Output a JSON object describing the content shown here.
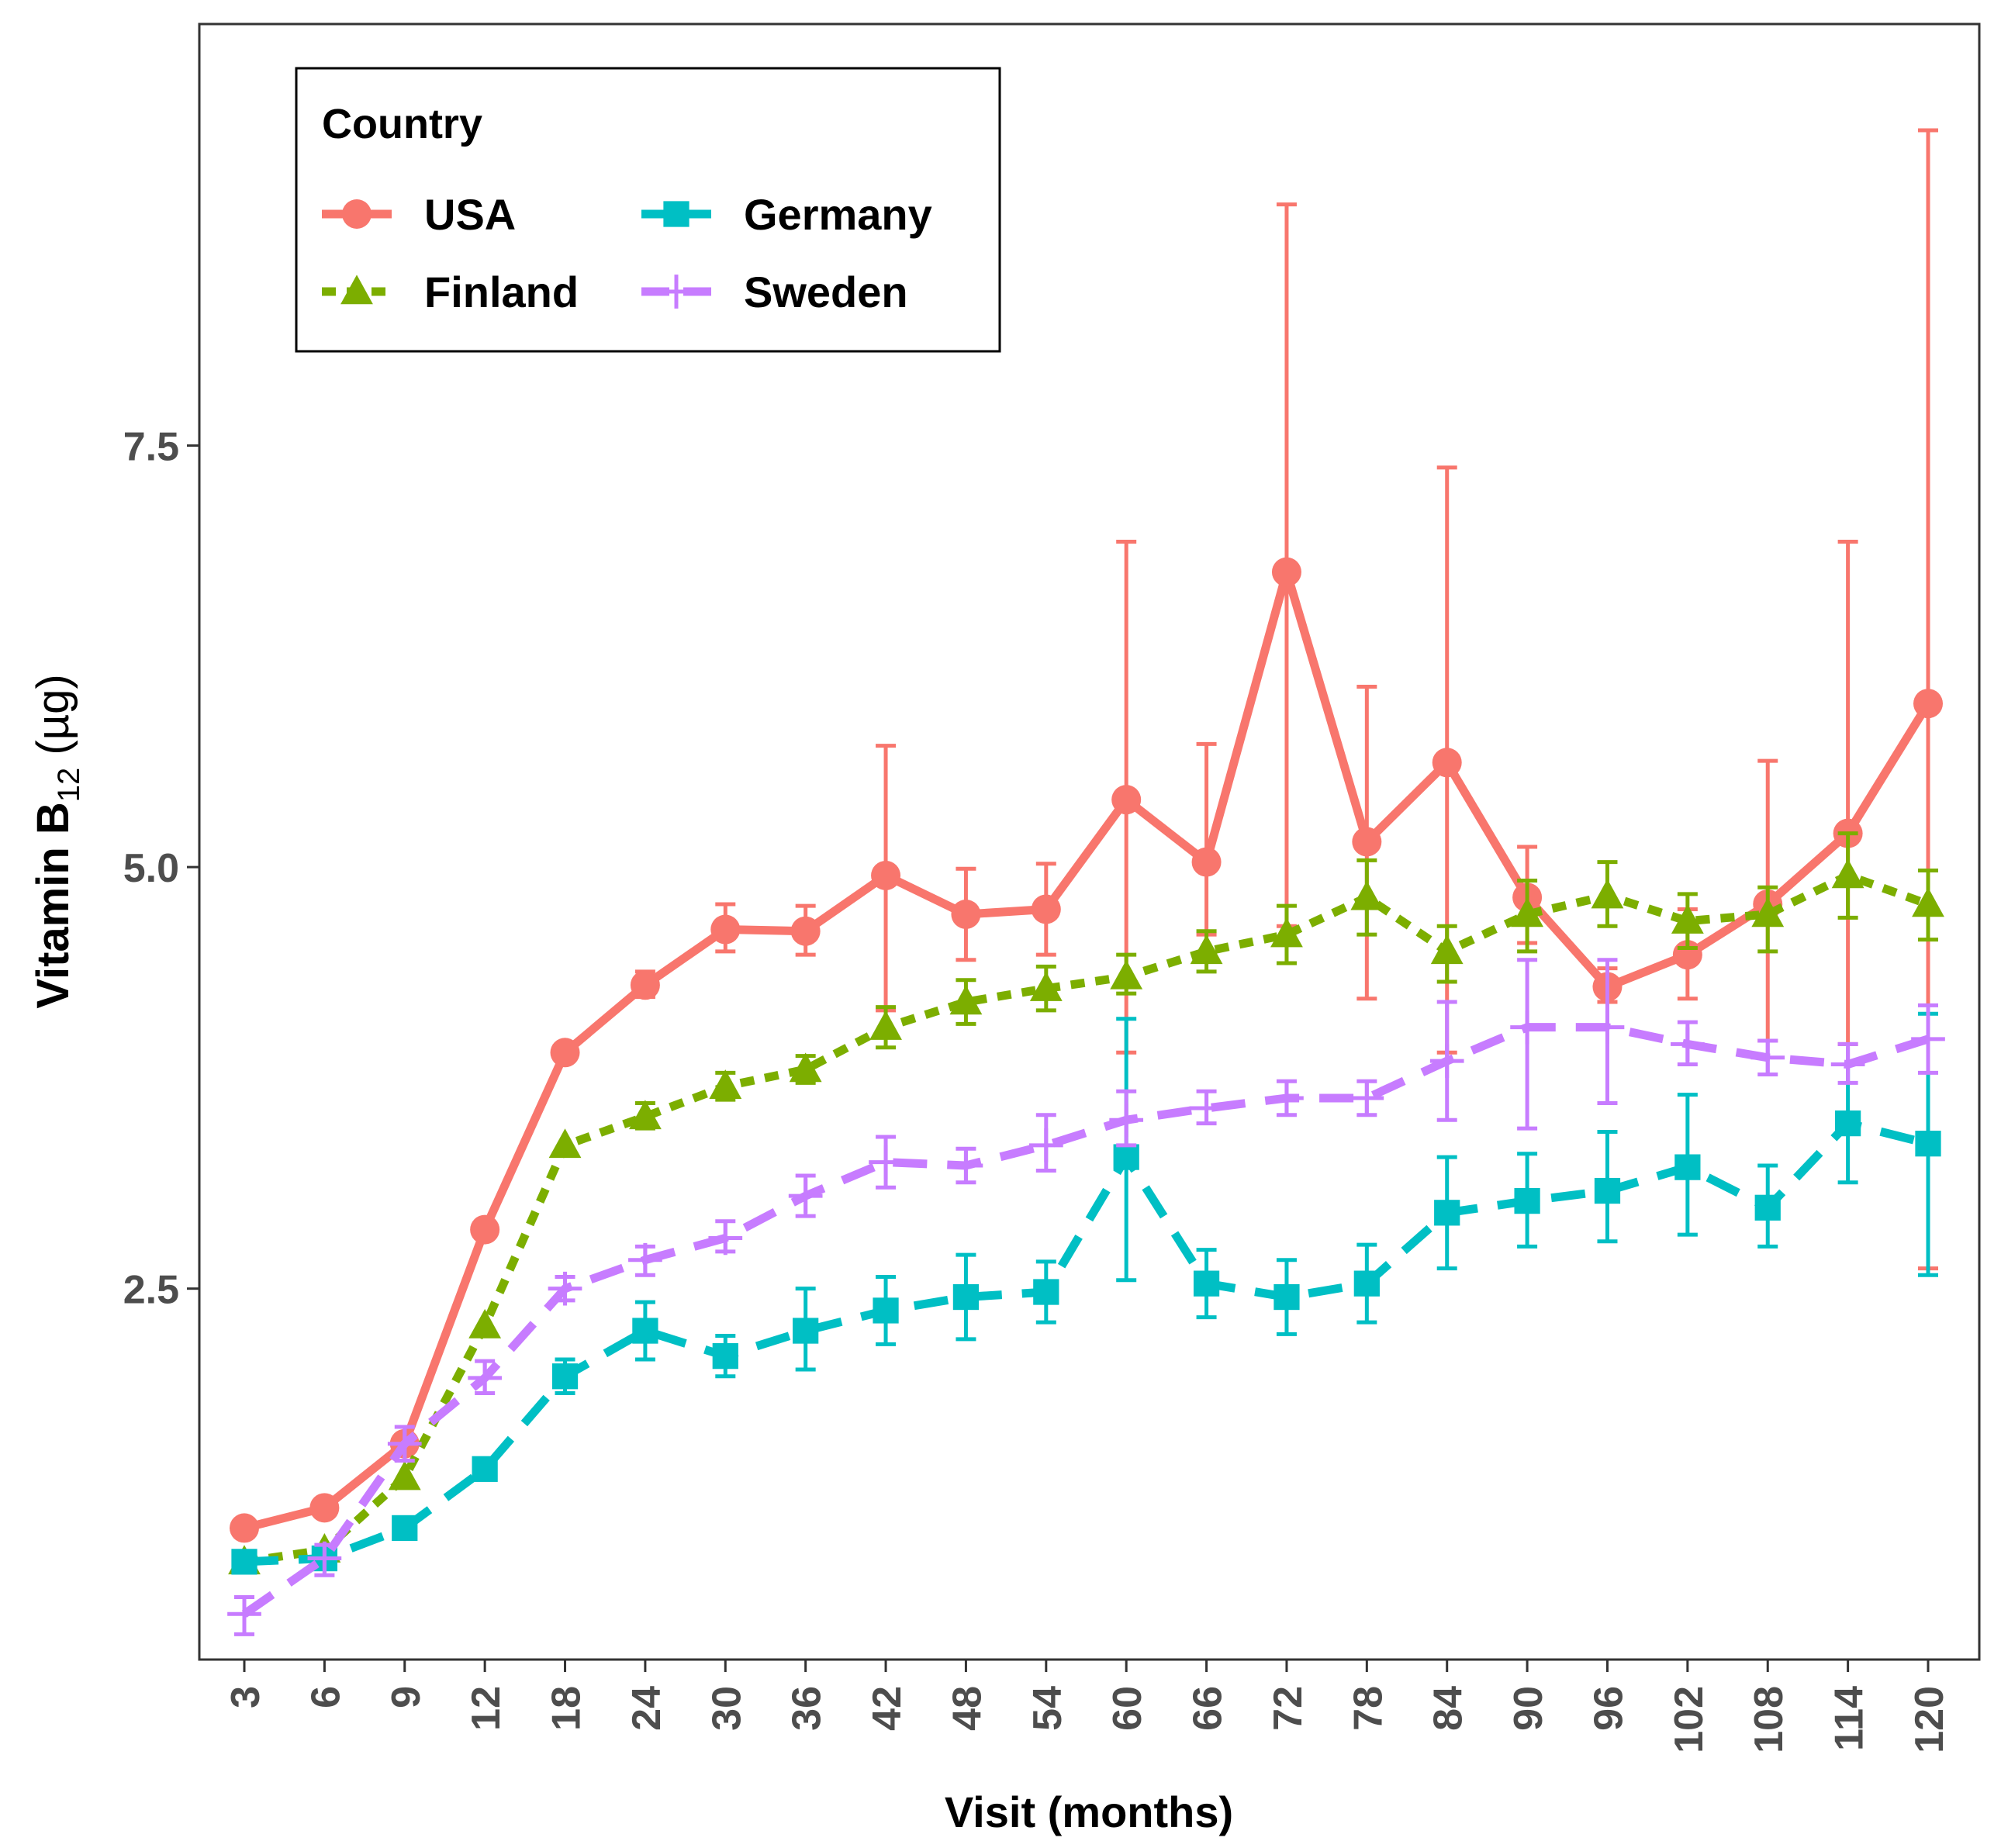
{
  "chart_data": {
    "type": "line",
    "title": "",
    "xlabel": "Visit (months)",
    "ylabel_main": "Vitamin B",
    "ylabel_sub": "12",
    "ylabel_unit": " (µg)",
    "ylim": [
      0.3,
      10.0
    ],
    "yticks": [
      2.5,
      5.0,
      7.5
    ],
    "ytick_labels": [
      "2.5",
      "5.0",
      "7.5"
    ],
    "categories": [
      "3",
      "6",
      "9",
      "12",
      "18",
      "24",
      "30",
      "36",
      "42",
      "48",
      "54",
      "60",
      "66",
      "72",
      "78",
      "84",
      "90",
      "96",
      "102",
      "108",
      "114",
      "120"
    ],
    "grid": false,
    "legend": {
      "title": "Country",
      "position": "top-left"
    },
    "series": [
      {
        "name": "USA",
        "color": "#F8766D",
        "dash": "solid",
        "marker": "circle",
        "values": [
          1.08,
          1.2,
          1.58,
          2.85,
          3.9,
          4.3,
          4.63,
          4.62,
          4.95,
          4.72,
          4.75,
          5.4,
          5.03,
          6.75,
          5.15,
          5.62,
          4.82,
          4.29,
          4.48,
          4.78,
          5.2,
          5.97
        ],
        "err_low": [
          1.08,
          1.2,
          1.58,
          2.85,
          3.9,
          4.23,
          4.5,
          4.48,
          4.15,
          4.45,
          4.48,
          3.9,
          4.6,
          4.65,
          4.22,
          3.9,
          4.55,
          4.2,
          4.22,
          3.97,
          3.95,
          2.62
        ],
        "err_high": [
          1.08,
          1.2,
          1.58,
          2.85,
          3.9,
          4.38,
          4.78,
          4.77,
          5.72,
          4.99,
          5.02,
          6.93,
          5.73,
          8.93,
          6.07,
          7.37,
          5.12,
          4.4,
          4.75,
          5.63,
          6.93,
          9.37
        ]
      },
      {
        "name": "Finland",
        "color": "#7CAE00",
        "dash": "dotted",
        "marker": "triangle",
        "values": [
          0.88,
          0.95,
          1.38,
          2.28,
          3.35,
          3.52,
          3.7,
          3.8,
          4.05,
          4.2,
          4.28,
          4.35,
          4.5,
          4.6,
          4.82,
          4.5,
          4.72,
          4.83,
          4.68,
          4.72,
          4.95,
          4.78
        ],
        "err_low": [
          0.88,
          0.95,
          1.38,
          2.28,
          3.35,
          3.45,
          3.62,
          3.72,
          3.93,
          4.07,
          4.15,
          4.25,
          4.38,
          4.43,
          4.6,
          4.32,
          4.5,
          4.65,
          4.52,
          4.5,
          4.7,
          4.57
        ],
        "err_high": [
          0.88,
          0.95,
          1.38,
          2.28,
          3.35,
          3.6,
          3.78,
          3.88,
          4.17,
          4.33,
          4.41,
          4.48,
          4.62,
          4.77,
          5.04,
          4.65,
          4.92,
          5.03,
          4.84,
          4.88,
          5.2,
          4.98
        ]
      },
      {
        "name": "Germany",
        "color": "#00BFC4",
        "dash": "dashed",
        "marker": "square",
        "values": [
          0.88,
          0.9,
          1.08,
          1.43,
          1.98,
          2.25,
          2.1,
          2.25,
          2.37,
          2.45,
          2.48,
          3.28,
          2.53,
          2.45,
          2.53,
          2.95,
          3.02,
          3.08,
          3.22,
          2.98,
          3.48,
          3.36
        ],
        "err_low": [
          0.88,
          0.9,
          1.08,
          1.43,
          1.88,
          2.08,
          1.98,
          2.02,
          2.17,
          2.2,
          2.3,
          2.55,
          2.33,
          2.23,
          2.3,
          2.62,
          2.75,
          2.78,
          2.82,
          2.75,
          3.13,
          2.58
        ],
        "err_high": [
          0.88,
          0.9,
          1.08,
          1.43,
          2.08,
          2.42,
          2.22,
          2.5,
          2.57,
          2.7,
          2.66,
          4.1,
          2.73,
          2.67,
          2.76,
          3.28,
          3.3,
          3.43,
          3.65,
          3.23,
          3.83,
          4.13
        ]
      },
      {
        "name": "Sweden",
        "color": "#C77CFF",
        "dash": "dashed",
        "marker": "plus",
        "values": [
          0.57,
          0.9,
          1.58,
          1.97,
          2.5,
          2.67,
          2.8,
          3.05,
          3.25,
          3.23,
          3.35,
          3.5,
          3.57,
          3.63,
          3.63,
          3.85,
          4.05,
          4.05,
          3.95,
          3.87,
          3.83,
          3.98
        ],
        "err_low": [
          0.45,
          0.8,
          1.48,
          1.88,
          2.43,
          2.58,
          2.72,
          2.93,
          3.1,
          3.13,
          3.2,
          3.35,
          3.48,
          3.53,
          3.53,
          3.5,
          3.45,
          3.6,
          3.83,
          3.77,
          3.72,
          3.78
        ],
        "err_high": [
          0.67,
          0.98,
          1.68,
          2.07,
          2.57,
          2.75,
          2.9,
          3.17,
          3.4,
          3.33,
          3.53,
          3.67,
          3.67,
          3.73,
          3.73,
          4.2,
          4.45,
          4.45,
          4.08,
          3.97,
          3.95,
          4.18
        ]
      }
    ]
  }
}
